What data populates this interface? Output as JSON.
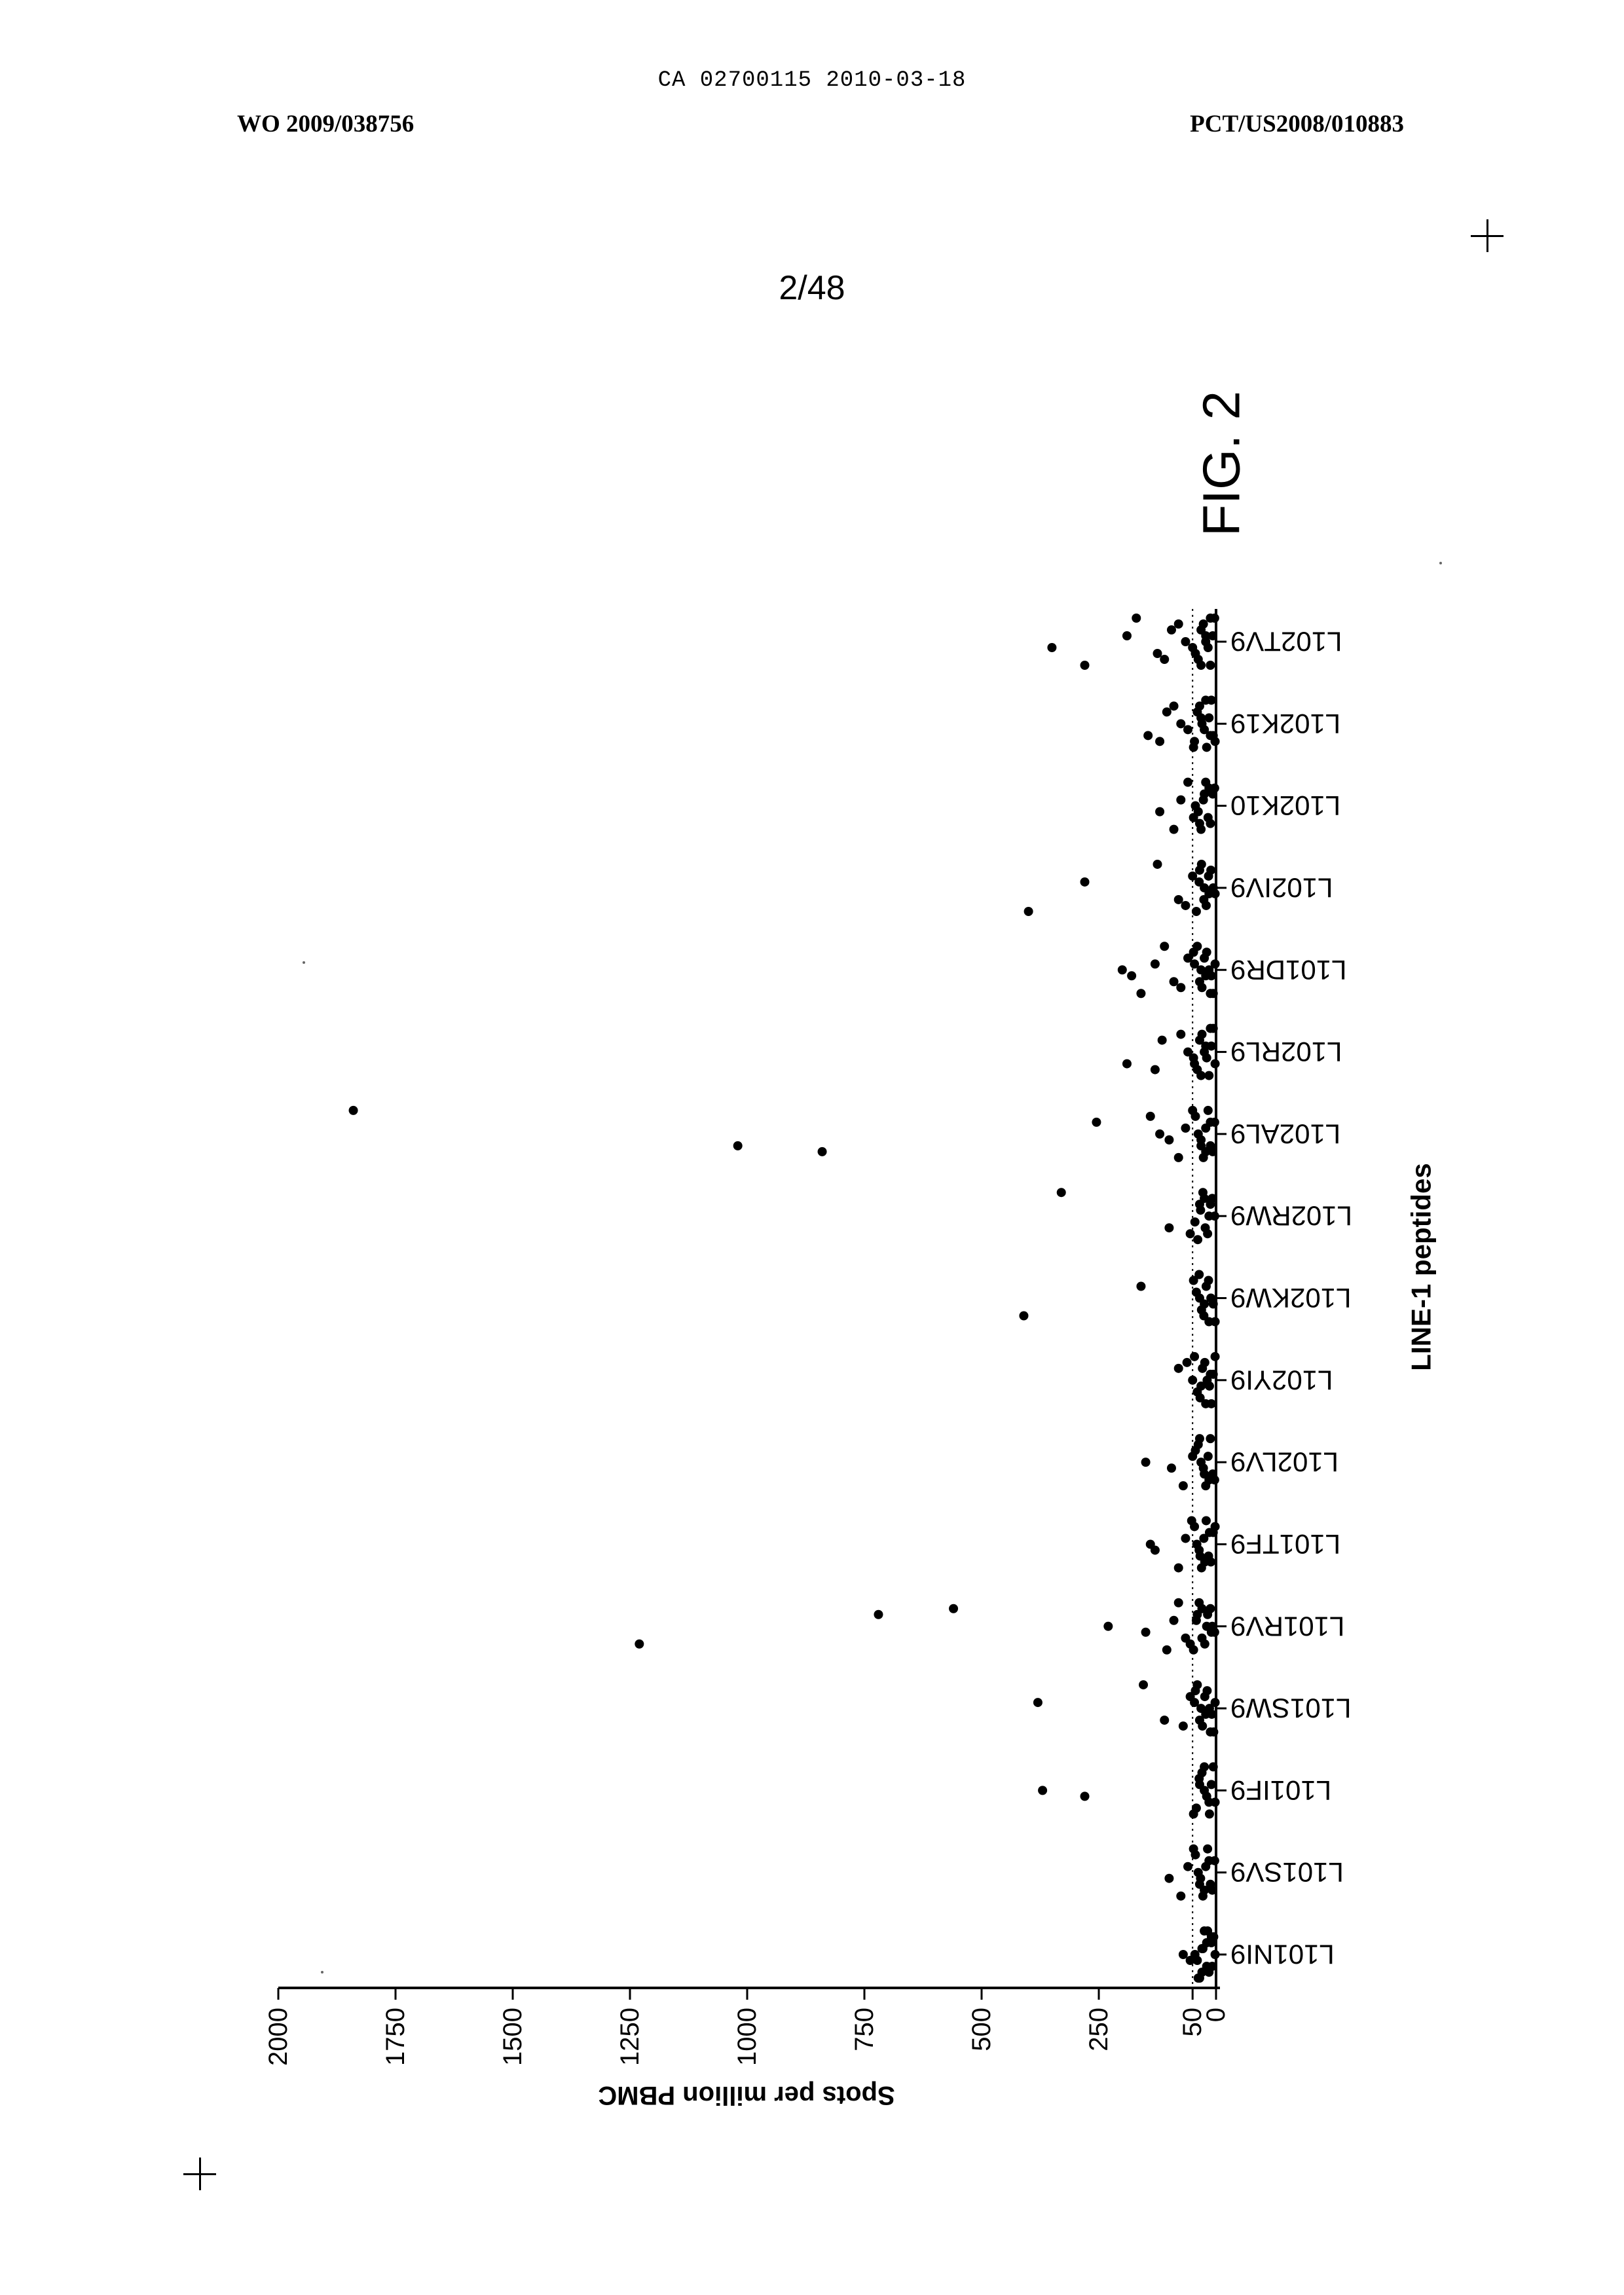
{
  "header": {
    "ca_line": "CA 02700115 2010-03-18",
    "wo_number": "WO 2009/038756",
    "pct_number": "PCT/US2008/010883",
    "page": "2/48"
  },
  "chart_data": {
    "type": "scatter",
    "figure_label": "FIG. 2",
    "orientation": "rotated 180 degrees",
    "xlabel": "LINE-1 peptides",
    "ylabel": "Spots per million PBMC",
    "ylim": [
      0,
      2000
    ],
    "yticks": [
      0,
      50,
      250,
      500,
      750,
      1000,
      1250,
      1500,
      1750,
      2000
    ],
    "threshold": 50,
    "categories": [
      "L101NI9",
      "L101SV9",
      "L101IF9",
      "L101SW9",
      "L101RV9",
      "L101TF9",
      "L102LV9",
      "L102YI9",
      "L102KW9",
      "L102RW9",
      "L102AL9",
      "L102RL9",
      "L101DR9",
      "L102IV9",
      "L102K10",
      "L102K19",
      "L102TV9"
    ],
    "series": [
      {
        "values": [
          [
            2,
            5,
            10,
            15,
            20,
            25,
            30,
            35,
            40,
            45,
            10,
            20,
            30,
            8,
            18,
            28,
            38,
            55,
            70
          ],
          [
            3,
            8,
            12,
            18,
            22,
            28,
            33,
            38,
            44,
            15,
            25,
            35,
            48,
            60,
            75,
            100
          ],
          [
            2,
            6,
            10,
            14,
            20,
            25,
            30,
            36,
            42,
            15,
            25,
            35,
            48,
            280,
            370
          ],
          [
            2,
            5,
            9,
            14,
            19,
            24,
            29,
            35,
            40,
            46,
            12,
            22,
            32,
            44,
            55,
            70,
            110,
            155,
            380
          ],
          [
            3,
            8,
            12,
            18,
            24,
            30,
            36,
            42,
            48,
            10,
            20,
            30,
            40,
            55,
            65,
            80,
            90,
            105,
            150,
            230,
            560,
            720,
            1230
          ],
          [
            2,
            6,
            11,
            16,
            21,
            26,
            31,
            36,
            41,
            46,
            14,
            24,
            34,
            52,
            65,
            80,
            130,
            140
          ],
          [
            3,
            7,
            12,
            17,
            22,
            27,
            32,
            38,
            44,
            15,
            25,
            35,
            50,
            70,
            95,
            150
          ],
          [
            2,
            6,
            10,
            14,
            19,
            24,
            29,
            34,
            40,
            46,
            12,
            22,
            32,
            50,
            62,
            80
          ],
          [
            2,
            6,
            11,
            16,
            21,
            26,
            31,
            36,
            42,
            15,
            25,
            35,
            48,
            160,
            410
          ],
          [
            3,
            8,
            12,
            18,
            23,
            28,
            33,
            39,
            45,
            15,
            25,
            35,
            55,
            100,
            330
          ],
          [
            3,
            7,
            12,
            17,
            22,
            27,
            32,
            38,
            44,
            12,
            22,
            32,
            50,
            65,
            80,
            100,
            120,
            140,
            255,
            840,
            1020,
            1840
          ],
          [
            2,
            6,
            10,
            15,
            20,
            25,
            30,
            35,
            40,
            46,
            12,
            22,
            32,
            48,
            60,
            75,
            115,
            130,
            190
          ],
          [
            2,
            6,
            10,
            15,
            20,
            25,
            30,
            35,
            40,
            46,
            12,
            22,
            32,
            48,
            60,
            75,
            90,
            110,
            130,
            160,
            180,
            200
          ],
          [
            2,
            6,
            11,
            16,
            21,
            26,
            31,
            36,
            42,
            15,
            25,
            35,
            50,
            65,
            80,
            125,
            280,
            400
          ],
          [
            3,
            7,
            12,
            17,
            22,
            27,
            32,
            38,
            44,
            15,
            25,
            35,
            48,
            60,
            75,
            90,
            120
          ],
          [
            2,
            6,
            10,
            15,
            20,
            25,
            30,
            35,
            40,
            46,
            12,
            22,
            32,
            48,
            60,
            75,
            90,
            105,
            120,
            145
          ],
          [
            3,
            7,
            12,
            17,
            22,
            27,
            32,
            38,
            44,
            12,
            22,
            32,
            50,
            65,
            80,
            95,
            110,
            125,
            170,
            190,
            280,
            350
          ]
        ]
      }
    ]
  }
}
